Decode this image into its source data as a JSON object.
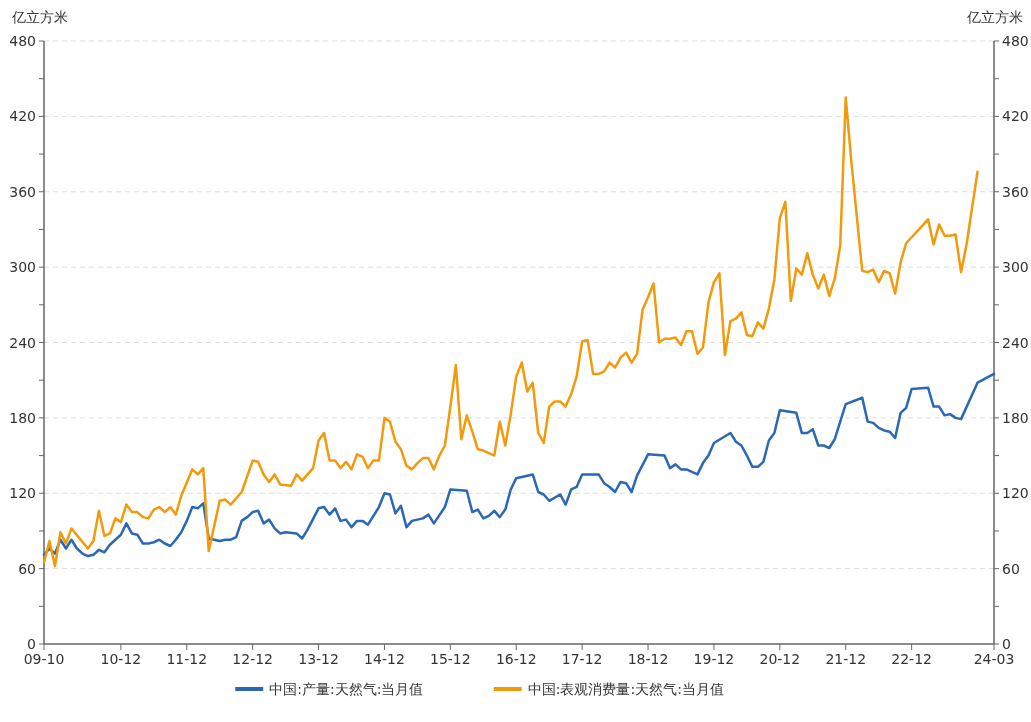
{
  "chart_data": {
    "type": "line",
    "ylabel": "亿立方米",
    "y2label": "亿立方米",
    "xlim": [
      "2009-10",
      "2024-03"
    ],
    "xticks": [
      {
        "value": "2009-10",
        "label": "09-10"
      },
      {
        "value": "2010-12",
        "label": "10-12"
      },
      {
        "value": "2011-12",
        "label": "11-12"
      },
      {
        "value": "2012-12",
        "label": "12-12"
      },
      {
        "value": "2013-12",
        "label": "13-12"
      },
      {
        "value": "2014-12",
        "label": "14-12"
      },
      {
        "value": "2015-12",
        "label": "15-12"
      },
      {
        "value": "2016-12",
        "label": "16-12"
      },
      {
        "value": "2017-12",
        "label": "17-12"
      },
      {
        "value": "2018-12",
        "label": "18-12"
      },
      {
        "value": "2019-12",
        "label": "19-12"
      },
      {
        "value": "2020-12",
        "label": "20-12"
      },
      {
        "value": "2021-12",
        "label": "21-12"
      },
      {
        "value": "2022-12",
        "label": "22-12"
      },
      {
        "value": "2024-03",
        "label": "24-03"
      }
    ],
    "ylim": [
      0,
      480
    ],
    "yticks": [
      0,
      {
        "value": 30,
        "label": null
      },
      60,
      {
        "value": 90,
        "label": null
      },
      120,
      {
        "value": 150,
        "label": null
      },
      180,
      {
        "value": 210,
        "label": null
      },
      240,
      {
        "value": 270,
        "label": null
      },
      300,
      {
        "value": 330,
        "label": null
      },
      360,
      {
        "value": 390,
        "label": null
      },
      420,
      {
        "value": 450,
        "label": null
      },
      480
    ],
    "y2lim": [
      0,
      480
    ],
    "y2ticks": [
      0,
      {
        "value": 30,
        "label": null
      },
      60,
      {
        "value": 90,
        "label": null
      },
      120,
      {
        "value": 150,
        "label": null
      },
      180,
      {
        "value": 210,
        "label": null
      },
      240,
      {
        "value": 270,
        "label": null
      },
      300,
      {
        "value": 330,
        "label": null
      },
      360,
      {
        "value": 390,
        "label": null
      },
      420,
      {
        "value": 450,
        "label": null
      },
      480
    ],
    "grid": "y",
    "legend": "bottom",
    "series": [
      {
        "name": "中国:产量:天然气:当月值",
        "color": "#2a67b4",
        "x": [
          "2009-10",
          "2009-11",
          "2009-12",
          "2010-01",
          "2010-02",
          "2010-03",
          "2010-04",
          "2010-05",
          "2010-06",
          "2010-07",
          "2010-08",
          "2010-09",
          "2010-10",
          "2010-11",
          "2010-12",
          "2011-01",
          "2011-02",
          "2011-03",
          "2011-04",
          "2011-05",
          "2011-06",
          "2011-07",
          "2011-08",
          "2011-09",
          "2011-10",
          "2011-11",
          "2011-12",
          "2012-01",
          "2012-02",
          "2012-03",
          "2012-04",
          "2012-05",
          "2012-06",
          "2012-07",
          "2012-08",
          "2012-09",
          "2012-10",
          "2012-11",
          "2012-12",
          "2013-01",
          "2013-02",
          "2013-03",
          "2013-04",
          "2013-05",
          "2013-06",
          "2013-08",
          "2013-09",
          "2013-10",
          "2013-12",
          "2014-01",
          "2014-02",
          "2014-03",
          "2014-04",
          "2014-05",
          "2014-06",
          "2014-07",
          "2014-08",
          "2014-09",
          "2014-11",
          "2014-12",
          "2015-01",
          "2015-02",
          "2015-03",
          "2015-04",
          "2015-05",
          "2015-06",
          "2015-07",
          "2015-08",
          "2015-09",
          "2015-11",
          "2015-12",
          "2016-03",
          "2016-04",
          "2016-05",
          "2016-06",
          "2016-07",
          "2016-08",
          "2016-09",
          "2016-10",
          "2016-11",
          "2016-12",
          "2017-03",
          "2017-04",
          "2017-05",
          "2017-06",
          "2017-08",
          "2017-09",
          "2017-10",
          "2017-11",
          "2017-12",
          "2018-03",
          "2018-04",
          "2018-05",
          "2018-06",
          "2018-07",
          "2018-08",
          "2018-09",
          "2018-10",
          "2018-12",
          "2019-03",
          "2019-04",
          "2019-05",
          "2019-06",
          "2019-07",
          "2019-08",
          "2019-09",
          "2019-10",
          "2019-11",
          "2019-12",
          "2020-03",
          "2020-04",
          "2020-05",
          "2020-06",
          "2020-07",
          "2020-08",
          "2020-09",
          "2020-10",
          "2020-11",
          "2020-12",
          "2021-03",
          "2021-04",
          "2021-05",
          "2021-06",
          "2021-07",
          "2021-08",
          "2021-09",
          "2021-10",
          "2021-12",
          "2022-03",
          "2022-04",
          "2022-05",
          "2022-06",
          "2022-07",
          "2022-08",
          "2022-09",
          "2022-10",
          "2022-11",
          "2022-12",
          "2023-03",
          "2023-04",
          "2023-05",
          "2023-06",
          "2023-07",
          "2023-08",
          "2023-09",
          "2023-12",
          "2024-03"
        ],
        "values": [
          71,
          76,
          72,
          83,
          76,
          83,
          76,
          72,
          70,
          71,
          75,
          73,
          79,
          83,
          87,
          96,
          88,
          87,
          80,
          80,
          81,
          83,
          80,
          78,
          83,
          89,
          98,
          109,
          108,
          112,
          84,
          83,
          82,
          83,
          83,
          85,
          98,
          101,
          105,
          106,
          96,
          99,
          92,
          88,
          89,
          88,
          84,
          91,
          108,
          109,
          103,
          108,
          98,
          99,
          93,
          98,
          98,
          95,
          109,
          120,
          119,
          104,
          110,
          93,
          98,
          99,
          100,
          103,
          96,
          109,
          123,
          122,
          105,
          107,
          100,
          102,
          106,
          101,
          107,
          123,
          132,
          135,
          121,
          119,
          114,
          119,
          111,
          123,
          125,
          135,
          135,
          128,
          125,
          121,
          129,
          128,
          121,
          134,
          151,
          150,
          140,
          143,
          139,
          139,
          137,
          135,
          144,
          150,
          160,
          168,
          161,
          158,
          150,
          141,
          141,
          145,
          162,
          168,
          186,
          184,
          168,
          168,
          171,
          158,
          158,
          156,
          163,
          191,
          196,
          177,
          176,
          172,
          170,
          169,
          164,
          184,
          188,
          203,
          204,
          189,
          189,
          182,
          183,
          180,
          179,
          208,
          215
        ]
      },
      {
        "name": "中国:表观消费量:天然气:当月值",
        "color": "#f39a0c",
        "x": [
          "2009-10",
          "2009-11",
          "2009-12",
          "2010-01",
          "2010-02",
          "2010-03",
          "2010-06",
          "2010-07",
          "2010-08",
          "2010-09",
          "2010-10",
          "2010-11",
          "2010-12",
          "2011-01",
          "2011-02",
          "2011-03",
          "2011-04",
          "2011-05",
          "2011-06",
          "2011-07",
          "2011-08",
          "2011-09",
          "2011-10",
          "2011-11",
          "2012-01",
          "2012-02",
          "2012-03",
          "2012-04",
          "2012-06",
          "2012-07",
          "2012-08",
          "2012-10",
          "2012-12",
          "2013-01",
          "2013-02",
          "2013-03",
          "2013-04",
          "2013-05",
          "2013-07",
          "2013-08",
          "2013-09",
          "2013-10",
          "2013-11",
          "2013-12",
          "2014-01",
          "2014-02",
          "2014-03",
          "2014-04",
          "2014-05",
          "2014-06",
          "2014-07",
          "2014-08",
          "2014-09",
          "2014-10",
          "2014-11",
          "2014-12",
          "2015-01",
          "2015-02",
          "2015-03",
          "2015-04",
          "2015-05",
          "2015-06",
          "2015-07",
          "2015-08",
          "2015-09",
          "2015-10",
          "2015-11",
          "2015-12",
          "2016-01",
          "2016-02",
          "2016-03",
          "2016-04",
          "2016-05",
          "2016-06",
          "2016-07",
          "2016-08",
          "2016-09",
          "2016-10",
          "2016-11",
          "2016-12",
          "2017-01",
          "2017-02",
          "2017-03",
          "2017-04",
          "2017-05",
          "2017-06",
          "2017-07",
          "2017-08",
          "2017-09",
          "2017-10",
          "2017-11",
          "2017-12",
          "2018-01",
          "2018-02",
          "2018-03",
          "2018-04",
          "2018-05",
          "2018-06",
          "2018-07",
          "2018-08",
          "2018-09",
          "2018-10",
          "2018-11",
          "2018-12",
          "2019-01",
          "2019-02",
          "2019-03",
          "2019-04",
          "2019-05",
          "2019-06",
          "2019-07",
          "2019-08",
          "2019-09",
          "2019-10",
          "2019-11",
          "2019-12",
          "2020-01",
          "2020-02",
          "2020-03",
          "2020-04",
          "2020-05",
          "2020-06",
          "2020-07",
          "2020-08",
          "2020-09",
          "2020-10",
          "2020-11",
          "2020-12",
          "2021-01",
          "2021-02",
          "2021-03",
          "2021-04",
          "2021-05",
          "2021-06",
          "2021-07",
          "2021-08",
          "2021-09",
          "2021-10",
          "2021-11",
          "2021-12",
          "2022-01",
          "2022-03",
          "2022-04",
          "2022-05",
          "2022-06",
          "2022-07",
          "2022-08",
          "2022-09",
          "2022-10",
          "2022-11",
          "2023-03",
          "2023-04",
          "2023-05",
          "2023-06",
          "2023-07",
          "2023-08",
          "2023-09",
          "2023-10",
          "2023-12"
        ],
        "values": [
          65,
          82,
          62,
          89,
          80,
          92,
          76,
          82,
          106,
          86,
          88,
          100,
          97,
          111,
          105,
          105,
          101,
          100,
          107,
          109,
          105,
          109,
          103,
          118,
          139,
          135,
          140,
          74,
          114,
          115,
          111,
          121,
          146,
          145,
          135,
          129,
          135,
          127,
          126,
          135,
          130,
          135,
          140,
          162,
          168,
          146,
          146,
          140,
          145,
          139,
          151,
          149,
          140,
          146,
          146,
          180,
          177,
          161,
          155,
          142,
          139,
          144,
          148,
          148,
          139,
          150,
          158,
          189,
          222,
          163,
          182,
          169,
          155,
          154,
          152,
          150,
          177,
          158,
          183,
          213,
          224,
          201,
          208,
          168,
          160,
          189,
          193,
          193,
          189,
          199,
          213,
          241,
          242,
          215,
          215,
          217,
          224,
          220,
          228,
          232,
          224,
          231,
          266,
          276,
          287,
          240,
          243,
          243,
          244,
          238,
          249,
          249,
          231,
          236,
          272,
          288,
          295,
          230,
          257,
          259,
          264,
          246,
          245,
          256,
          251,
          267,
          290,
          339,
          352,
          273,
          299,
          294,
          311,
          294,
          283,
          294,
          277,
          291,
          317,
          435,
          385,
          297,
          296,
          298,
          288,
          297,
          295,
          279,
          304,
          319,
          338,
          318,
          334,
          325,
          325,
          326,
          296,
          318,
          376
        ]
      }
    ]
  }
}
